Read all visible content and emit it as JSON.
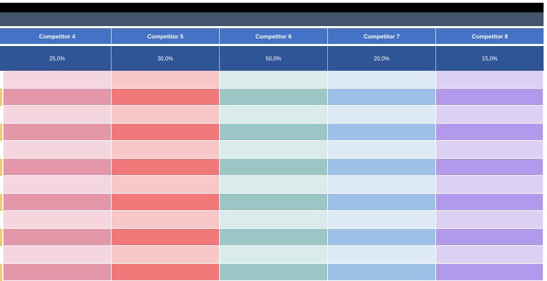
{
  "table": {
    "headers": [
      "Competitor 4",
      "Competitor 5",
      "Competitor 6",
      "Competitor 7",
      "Competitor 8"
    ],
    "weights": [
      "25,0%",
      "30,0%",
      "50,0%",
      "20,0%",
      "15,0%"
    ],
    "colors": {
      "header": "#4472c4",
      "weight_row": "#2f5597",
      "title_bar": "#44546a",
      "row_light": [
        "#f5d6df",
        "#f8c8c8",
        "#d9ebea",
        "#dde9f5",
        "#dcd1f5"
      ],
      "row_dark": [
        "#e597aa",
        "#f07878",
        "#9cc6c5",
        "#9cc0e6",
        "#b199ec"
      ],
      "row_accent": "#f6c76a"
    },
    "row_count": 12
  }
}
